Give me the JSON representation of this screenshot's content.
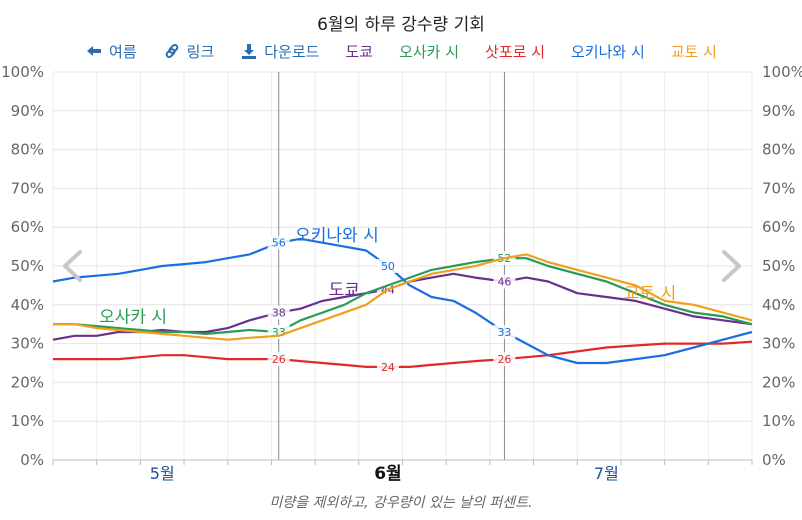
{
  "title": "6월의 하루 강수량 기회",
  "toolbar": {
    "back_label": "여름",
    "link_label": "링크",
    "download_label": "다운로드"
  },
  "footnote": "미량을 제외하고, 강우량이 있는 날의 퍼센트.",
  "colors": {
    "tokyo": "#6b2f8f",
    "osaka": "#2a9a55",
    "sapporo": "#e02a2a",
    "okinawa": "#1a6fe0",
    "kyoto": "#f0a020",
    "toolbar": "#2b6cb0"
  },
  "icons": {
    "back": "arrow-left-icon",
    "link": "link-icon",
    "download": "download-icon",
    "prev": "chevron-left-icon",
    "next": "chevron-right-icon"
  },
  "chart_data": {
    "type": "line",
    "x_axis": {
      "ticks": [
        "5월",
        "6월",
        "7월"
      ],
      "tick_positions": [
        15,
        46,
        76
      ],
      "bold_tick": "6월",
      "range_days": [
        0,
        96
      ]
    },
    "y_axis": {
      "ticks": [
        "0%",
        "10%",
        "20%",
        "30%",
        "40%",
        "50%",
        "60%",
        "70%",
        "80%",
        "90%",
        "100%"
      ],
      "ylim": [
        0,
        100
      ],
      "shown_left": true,
      "shown_right": true
    },
    "grid": true,
    "highlight_window": [
      31,
      62
    ],
    "series": [
      {
        "name": "도쿄",
        "color_key": "tokyo",
        "points": [
          [
            0,
            31
          ],
          [
            3,
            32
          ],
          [
            6,
            32
          ],
          [
            9,
            33
          ],
          [
            12,
            33
          ],
          [
            15,
            33.5
          ],
          [
            18,
            33
          ],
          [
            21,
            33
          ],
          [
            24,
            34
          ],
          [
            27,
            36
          ],
          [
            31,
            38
          ],
          [
            34,
            39
          ],
          [
            37,
            41
          ],
          [
            40,
            42
          ],
          [
            43,
            43
          ],
          [
            46,
            44
          ],
          [
            49,
            46
          ],
          [
            52,
            47
          ],
          [
            55,
            48
          ],
          [
            58,
            47
          ],
          [
            62,
            46
          ],
          [
            65,
            47
          ],
          [
            68,
            46
          ],
          [
            72,
            43
          ],
          [
            76,
            42
          ],
          [
            80,
            41
          ],
          [
            84,
            39
          ],
          [
            88,
            37
          ],
          [
            92,
            36
          ],
          [
            96,
            35
          ]
        ],
        "marks": [
          {
            "day": 31,
            "label": "38"
          },
          {
            "day": 46,
            "label": "44"
          },
          {
            "day": 62,
            "label": "46"
          }
        ],
        "annotation": {
          "text": "도쿄",
          "at": [
            40,
            44
          ]
        }
      },
      {
        "name": "오사카 시",
        "color_key": "osaka",
        "points": [
          [
            0,
            35
          ],
          [
            3,
            35
          ],
          [
            6,
            34.5
          ],
          [
            9,
            34
          ],
          [
            12,
            33.5
          ],
          [
            15,
            33
          ],
          [
            18,
            33
          ],
          [
            21,
            32.5
          ],
          [
            24,
            33
          ],
          [
            27,
            33.5
          ],
          [
            31,
            33
          ],
          [
            34,
            36
          ],
          [
            37,
            38
          ],
          [
            40,
            40
          ],
          [
            43,
            43
          ],
          [
            46,
            45
          ],
          [
            49,
            47
          ],
          [
            52,
            49
          ],
          [
            55,
            50
          ],
          [
            58,
            51
          ],
          [
            62,
            52
          ],
          [
            65,
            52
          ],
          [
            68,
            50
          ],
          [
            72,
            48
          ],
          [
            76,
            46
          ],
          [
            80,
            43
          ],
          [
            84,
            40
          ],
          [
            88,
            38
          ],
          [
            92,
            37
          ],
          [
            96,
            35
          ]
        ],
        "marks": [
          {
            "day": 31,
            "label": "33"
          },
          {
            "day": 62,
            "label": "52"
          }
        ],
        "annotation": {
          "text": "오사카 시",
          "at": [
            11,
            37
          ]
        }
      },
      {
        "name": "삿포로 시",
        "color_key": "sapporo",
        "points": [
          [
            0,
            26
          ],
          [
            3,
            26
          ],
          [
            6,
            26
          ],
          [
            9,
            26
          ],
          [
            12,
            26.5
          ],
          [
            15,
            27
          ],
          [
            18,
            27
          ],
          [
            21,
            26.5
          ],
          [
            24,
            26
          ],
          [
            27,
            26
          ],
          [
            31,
            26
          ],
          [
            34,
            25.5
          ],
          [
            37,
            25
          ],
          [
            40,
            24.5
          ],
          [
            43,
            24
          ],
          [
            46,
            24
          ],
          [
            49,
            24
          ],
          [
            52,
            24.5
          ],
          [
            55,
            25
          ],
          [
            58,
            25.5
          ],
          [
            62,
            26
          ],
          [
            65,
            26.5
          ],
          [
            68,
            27
          ],
          [
            72,
            28
          ],
          [
            76,
            29
          ],
          [
            80,
            29.5
          ],
          [
            84,
            30
          ],
          [
            88,
            30
          ],
          [
            92,
            30
          ],
          [
            96,
            30.5
          ]
        ],
        "marks": [
          {
            "day": 31,
            "label": "26"
          },
          {
            "day": 46,
            "label": "24"
          },
          {
            "day": 62,
            "label": "26"
          }
        ],
        "annotation": null
      },
      {
        "name": "오키나와 시",
        "color_key": "okinawa",
        "points": [
          [
            0,
            46
          ],
          [
            3,
            47
          ],
          [
            6,
            47.5
          ],
          [
            9,
            48
          ],
          [
            12,
            49
          ],
          [
            15,
            50
          ],
          [
            18,
            50.5
          ],
          [
            21,
            51
          ],
          [
            24,
            52
          ],
          [
            27,
            53
          ],
          [
            31,
            56
          ],
          [
            34,
            57
          ],
          [
            37,
            56
          ],
          [
            40,
            55
          ],
          [
            43,
            54
          ],
          [
            46,
            50
          ],
          [
            49,
            45
          ],
          [
            52,
            42
          ],
          [
            55,
            41
          ],
          [
            58,
            38
          ],
          [
            62,
            33
          ],
          [
            65,
            30
          ],
          [
            68,
            27
          ],
          [
            72,
            25
          ],
          [
            76,
            25
          ],
          [
            80,
            26
          ],
          [
            84,
            27
          ],
          [
            88,
            29
          ],
          [
            92,
            31
          ],
          [
            96,
            33
          ]
        ],
        "marks": [
          {
            "day": 31,
            "label": "56"
          },
          {
            "day": 46,
            "label": "50"
          },
          {
            "day": 62,
            "label": "33"
          }
        ],
        "annotation": {
          "text": "오키나와 시",
          "at": [
            39,
            58
          ]
        }
      },
      {
        "name": "교토 시",
        "color_key": "kyoto",
        "points": [
          [
            0,
            35
          ],
          [
            3,
            35
          ],
          [
            6,
            34
          ],
          [
            9,
            33.5
          ],
          [
            12,
            33
          ],
          [
            15,
            32.5
          ],
          [
            18,
            32
          ],
          [
            21,
            31.5
          ],
          [
            24,
            31
          ],
          [
            27,
            31.5
          ],
          [
            31,
            32
          ],
          [
            34,
            34
          ],
          [
            37,
            36
          ],
          [
            40,
            38
          ],
          [
            43,
            40
          ],
          [
            46,
            44
          ],
          [
            49,
            46
          ],
          [
            52,
            48
          ],
          [
            55,
            49
          ],
          [
            58,
            50
          ],
          [
            62,
            52
          ],
          [
            65,
            53
          ],
          [
            68,
            51
          ],
          [
            72,
            49
          ],
          [
            76,
            47
          ],
          [
            80,
            45
          ],
          [
            84,
            41
          ],
          [
            88,
            40
          ],
          [
            92,
            38
          ],
          [
            96,
            36
          ]
        ],
        "marks": [],
        "annotation": {
          "text": "교토 시",
          "at": [
            82,
            43
          ]
        }
      }
    ]
  }
}
